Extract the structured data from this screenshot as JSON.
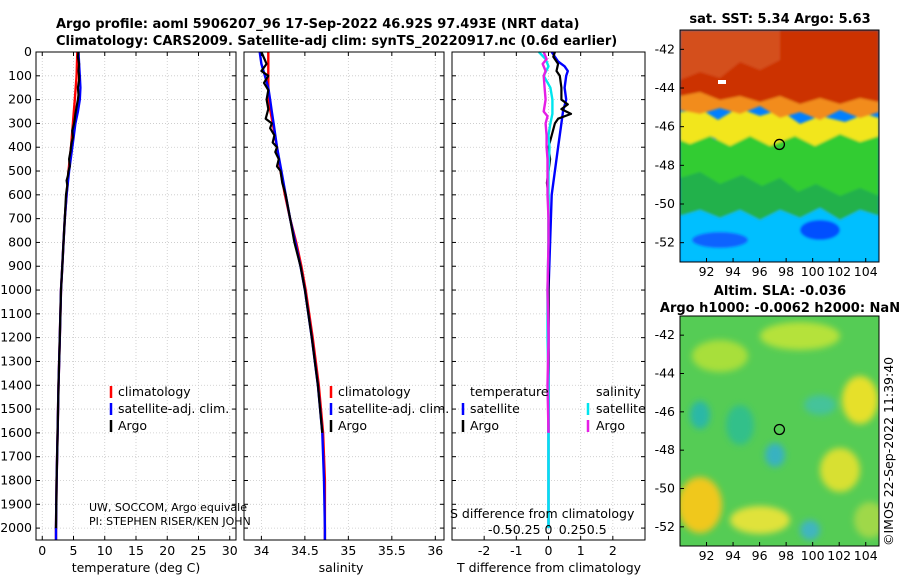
{
  "header": {
    "title_line1": "Argo profile: aoml 5906207_96 17-Sep-2022 46.92S 97.493E (NRT data)",
    "title_line2": "Climatology: CARS2009. Satellite-adj clim: synTS_20220917.nc (0.6d earlier)"
  },
  "colors": {
    "climatology": "#ff0000",
    "satellite": "#0000ff",
    "argo": "#000000",
    "sat_salinity": "#00e5ee",
    "argo_salinity": "#e61ee6"
  },
  "credit": {
    "line1": "UW, SOCCOM, Argo equivale",
    "line2": "PI: STEPHEN RISER/KEN JOHN"
  },
  "watermark": "©IMOS 22-Sep-2022 11:39:40",
  "chart_data": [
    {
      "type": "line",
      "name": "temperature-profile",
      "xlabel": "temperature (deg C)",
      "ylabel": "",
      "xlim": [
        -1,
        31
      ],
      "ylim": [
        2050,
        0
      ],
      "xticks": [
        0,
        5,
        10,
        15,
        20,
        25,
        30
      ],
      "xtick_labels": [
        "0",
        "5",
        "10",
        "15",
        "20",
        "25",
        "30"
      ],
      "yticks": [
        0,
        100,
        200,
        300,
        400,
        500,
        600,
        700,
        800,
        900,
        1000,
        1100,
        1200,
        1300,
        1400,
        1500,
        1600,
        1700,
        1800,
        1900,
        2000
      ],
      "ytick_labels": [
        "0",
        "100",
        "200",
        "300",
        "400",
        "500",
        "600",
        "700",
        "800",
        "900",
        "1000",
        "1100",
        "1200",
        "1300",
        "1400",
        "1500",
        "1600",
        "1700",
        "1800",
        "1900",
        "2000"
      ],
      "grid": true,
      "legend": {
        "placement": "bottom-right",
        "entries": [
          "climatology",
          "satellite-adj. clim.",
          "Argo"
        ]
      },
      "series": [
        {
          "name": "climatology",
          "depth": [
            0,
            100,
            200,
            300,
            400,
            500,
            600,
            700,
            800,
            900,
            1000,
            1200,
            1400,
            1600,
            1800,
            2000,
            2050
          ],
          "values": [
            5.6,
            5.5,
            5.2,
            4.9,
            4.6,
            4.2,
            3.9,
            3.6,
            3.4,
            3.2,
            3.0,
            2.8,
            2.6,
            2.45,
            2.3,
            2.2,
            2.2
          ]
        },
        {
          "name": "satellite-adj. clim.",
          "depth": [
            0,
            50,
            100,
            150,
            200,
            250,
            300,
            400,
            500,
            600,
            700,
            800,
            900,
            1000,
            1200,
            1400,
            1600,
            1800,
            2000,
            2050
          ],
          "values": [
            5.8,
            5.9,
            6.0,
            6.1,
            6.0,
            5.7,
            5.3,
            4.8,
            4.3,
            3.9,
            3.6,
            3.4,
            3.2,
            3.0,
            2.8,
            2.6,
            2.45,
            2.3,
            2.2,
            2.2
          ]
        },
        {
          "name": "Argo",
          "depth": [
            0,
            20,
            50,
            80,
            100,
            120,
            150,
            180,
            200,
            230,
            260,
            280,
            300,
            330,
            360,
            380,
            400,
            420,
            450,
            480,
            500,
            520,
            540,
            560,
            600,
            650,
            700,
            800,
            900,
            1000,
            1200,
            1400,
            1600,
            1800,
            2000
          ],
          "values": [
            5.8,
            5.7,
            5.9,
            5.8,
            5.9,
            5.9,
            5.7,
            5.8,
            5.7,
            5.5,
            5.3,
            5.2,
            5.1,
            4.8,
            4.9,
            4.7,
            4.6,
            4.5,
            4.3,
            4.4,
            4.2,
            4.1,
            3.9,
            4.0,
            3.8,
            3.7,
            3.6,
            3.4,
            3.2,
            3.0,
            2.8,
            2.6,
            2.45,
            2.3,
            2.2
          ]
        }
      ]
    },
    {
      "type": "line",
      "name": "salinity-profile",
      "xlabel": "salinity",
      "ylabel": "",
      "xlim": [
        33.8,
        36.1
      ],
      "ylim": [
        2050,
        0
      ],
      "xticks": [
        34,
        34.5,
        35,
        35.5,
        36
      ],
      "xtick_labels": [
        "34",
        "34.5",
        "35",
        "35.5",
        "36"
      ],
      "grid": true,
      "legend": {
        "placement": "bottom-right",
        "entries": [
          "climatology",
          "satellite-adj. clim.",
          "Argo"
        ]
      },
      "series": [
        {
          "name": "climatology",
          "depth": [
            0,
            100,
            200,
            300,
            400,
            500,
            600,
            700,
            800,
            900,
            1000,
            1200,
            1400,
            1600,
            1800,
            2000,
            2050
          ],
          "values": [
            34.08,
            34.08,
            34.08,
            34.13,
            34.18,
            34.22,
            34.27,
            34.33,
            34.4,
            34.46,
            34.51,
            34.59,
            34.66,
            34.71,
            34.73,
            34.73,
            34.73
          ]
        },
        {
          "name": "satellite-adj. clim.",
          "depth": [
            0,
            50,
            100,
            150,
            200,
            250,
            300,
            400,
            500,
            600,
            700,
            800,
            900,
            1000,
            1200,
            1400,
            1600,
            1800,
            2000,
            2050
          ],
          "values": [
            33.98,
            34.0,
            34.04,
            34.08,
            34.1,
            34.12,
            34.14,
            34.18,
            34.23,
            34.28,
            34.33,
            34.39,
            34.45,
            34.5,
            34.58,
            34.65,
            34.7,
            34.72,
            34.73,
            34.73
          ]
        },
        {
          "name": "Argo",
          "depth": [
            0,
            50,
            80,
            100,
            130,
            160,
            200,
            240,
            280,
            300,
            320,
            350,
            380,
            400,
            420,
            450,
            480,
            500,
            550,
            600,
            700,
            800,
            900,
            1000,
            1200,
            1400,
            1600
          ],
          "values": [
            34.0,
            34.06,
            34.0,
            34.08,
            34.03,
            34.08,
            34.06,
            34.08,
            34.05,
            34.12,
            34.1,
            34.15,
            34.13,
            34.18,
            34.16,
            34.2,
            34.18,
            34.22,
            34.24,
            34.28,
            34.33,
            34.38,
            34.45,
            34.5,
            34.58,
            34.65,
            34.7
          ]
        }
      ]
    },
    {
      "type": "line",
      "name": "difference-profile",
      "xlabel": "T difference from climatology",
      "x2label": "S difference from climatology",
      "xlim": [
        -3,
        3
      ],
      "x2lim": [
        -1,
        1
      ],
      "ylim": [
        2050,
        0
      ],
      "xticks": [
        -2,
        -1,
        0,
        1,
        2
      ],
      "xtick_labels": [
        "-2",
        "-1",
        "0",
        "1",
        "2"
      ],
      "x2ticks": [
        -0.5,
        -0.25,
        0,
        0.25,
        0.5
      ],
      "x2tick_labels": [
        "-0.5",
        "-0.25",
        "0",
        "0.25",
        "0.5"
      ],
      "grid": true,
      "legend": {
        "placement": "bottom",
        "temperature_title": "temperature",
        "salinity_title": "salinity",
        "temperature_entries": [
          "satellite",
          "Argo"
        ],
        "salinity_entries": [
          "satellite",
          "Argo"
        ]
      },
      "series": [
        {
          "name": "T satellite",
          "depth": [
            0,
            40,
            60,
            80,
            100,
            150,
            200,
            250,
            300,
            400,
            500,
            600,
            800,
            1000,
            1200,
            1400,
            1600,
            2000
          ],
          "values": [
            0.1,
            0.3,
            0.5,
            0.6,
            0.55,
            0.5,
            0.55,
            0.45,
            0.4,
            0.3,
            0.2,
            0.1,
            0.05,
            0.0,
            0.0,
            0.0,
            0.0,
            0.0
          ]
        },
        {
          "name": "T Argo",
          "depth": [
            0,
            20,
            50,
            80,
            100,
            150,
            200,
            220,
            240,
            260,
            280,
            300,
            350,
            400,
            450,
            500,
            550,
            600,
            800,
            1000,
            1200,
            1400,
            1600
          ],
          "values": [
            0.2,
            0.15,
            0.3,
            0.25,
            0.35,
            0.4,
            0.4,
            0.6,
            0.4,
            0.7,
            0.3,
            0.2,
            0.1,
            0.0,
            0.05,
            0.0,
            -0.05,
            0.0,
            0.0,
            0.0,
            0.0,
            0.0,
            0.0
          ]
        },
        {
          "name": "S satellite",
          "depth": [
            0,
            30,
            60,
            100,
            150,
            200,
            260,
            300,
            350,
            400,
            500,
            600,
            800,
            1000,
            1200,
            1400,
            1600,
            2000
          ],
          "values": [
            -0.1,
            -0.03,
            0.0,
            -0.05,
            0.02,
            0.04,
            0.04,
            0.02,
            0.0,
            0.01,
            0.0,
            0.0,
            0.0,
            -0.01,
            -0.01,
            0.0,
            0.0,
            0.0
          ]
        },
        {
          "name": "S Argo",
          "depth": [
            0,
            30,
            50,
            80,
            100,
            150,
            200,
            250,
            270,
            300,
            350,
            400,
            450,
            500,
            600,
            700,
            800,
            1000,
            1200,
            1400,
            1600
          ],
          "values": [
            -0.05,
            -0.02,
            -0.06,
            -0.03,
            -0.05,
            -0.04,
            -0.03,
            -0.05,
            -0.01,
            -0.03,
            -0.02,
            -0.02,
            -0.01,
            -0.01,
            -0.01,
            0.0,
            0.0,
            -0.01,
            0.0,
            -0.01,
            0.0
          ]
        }
      ]
    },
    {
      "type": "heatmap",
      "name": "sst-map",
      "title": "sat. SST: 5.34 Argo: 5.63",
      "xlim": [
        90,
        105
      ],
      "ylim": [
        -53,
        -41
      ],
      "xticks": [
        92,
        94,
        96,
        98,
        100,
        102,
        104
      ],
      "xtick_labels": [
        "92",
        "94",
        "96",
        "98",
        "100",
        "102",
        "104"
      ],
      "yticks": [
        -42,
        -44,
        -46,
        -48,
        -50,
        -52
      ],
      "ytick_labels": [
        "-42",
        "-44",
        "-46",
        "-48",
        "-50",
        "-52"
      ],
      "marker": {
        "lon": 97.493,
        "lat": -46.92
      }
    },
    {
      "type": "heatmap",
      "name": "sla-map",
      "title_line1": "Altim. SLA: -0.036",
      "title_line2": "Argo h1000: -0.0062 h2000: NaN",
      "xlim": [
        90,
        105
      ],
      "ylim": [
        -53,
        -41
      ],
      "xticks": [
        92,
        94,
        96,
        98,
        100,
        102,
        104
      ],
      "xtick_labels": [
        "92",
        "94",
        "96",
        "98",
        "100",
        "102",
        "104"
      ],
      "yticks": [
        -42,
        -44,
        -46,
        -48,
        -50,
        -52
      ],
      "ytick_labels": [
        "-42",
        "-44",
        "-46",
        "-48",
        "-50",
        "-52"
      ],
      "marker": {
        "lon": 97.493,
        "lat": -46.92
      }
    }
  ]
}
